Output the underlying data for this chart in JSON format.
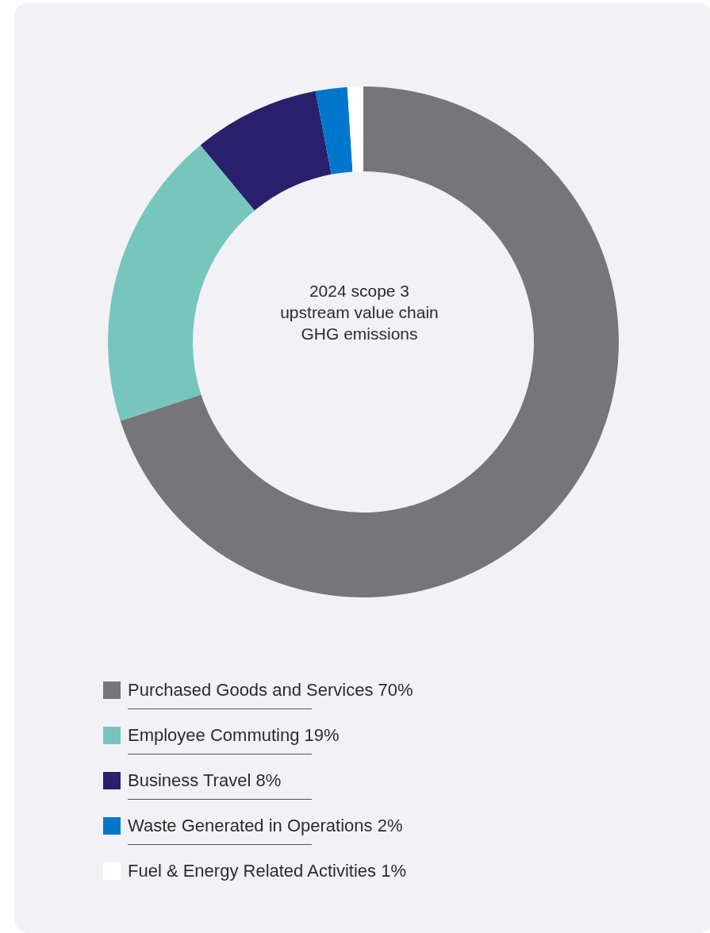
{
  "chart_data": {
    "type": "donut",
    "title": "2024 scope 3 upstream value chain GHG emissions",
    "categories": [
      "Purchased Goods and Services",
      "Employee Commuting",
      "Business Travel",
      "Waste Generated in Operations",
      "Fuel & Energy Related Activities"
    ],
    "values": [
      70,
      19,
      8,
      2,
      1
    ],
    "value_labels": [
      "70%",
      "19%",
      "8%",
      "2%",
      "1%"
    ],
    "colors": [
      "#767577",
      "#76c6bd",
      "#2a1f6b",
      "#0077cc",
      "#ffffff"
    ],
    "legend": "bottom"
  }
}
